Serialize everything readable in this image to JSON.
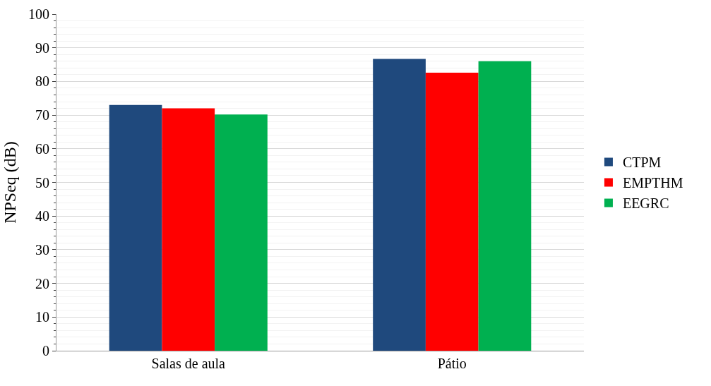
{
  "chart_data": {
    "type": "bar",
    "ylabel": "NPSeq (dB)",
    "categories": [
      "Salas de aula",
      "Pátio"
    ],
    "series": [
      {
        "name": "CTPM",
        "color": "#1f497d",
        "values": [
          73,
          86.7
        ]
      },
      {
        "name": "EMPTHM",
        "color": "#ff0000",
        "values": [
          72,
          82.6
        ]
      },
      {
        "name": "EEGRC",
        "color": "#00b050",
        "values": [
          70.2,
          86
        ]
      }
    ],
    "ylim": [
      0,
      100
    ],
    "yticks": [
      0,
      10,
      20,
      30,
      40,
      50,
      60,
      70,
      80,
      90,
      100
    ],
    "grid": "y",
    "legend": "right"
  }
}
